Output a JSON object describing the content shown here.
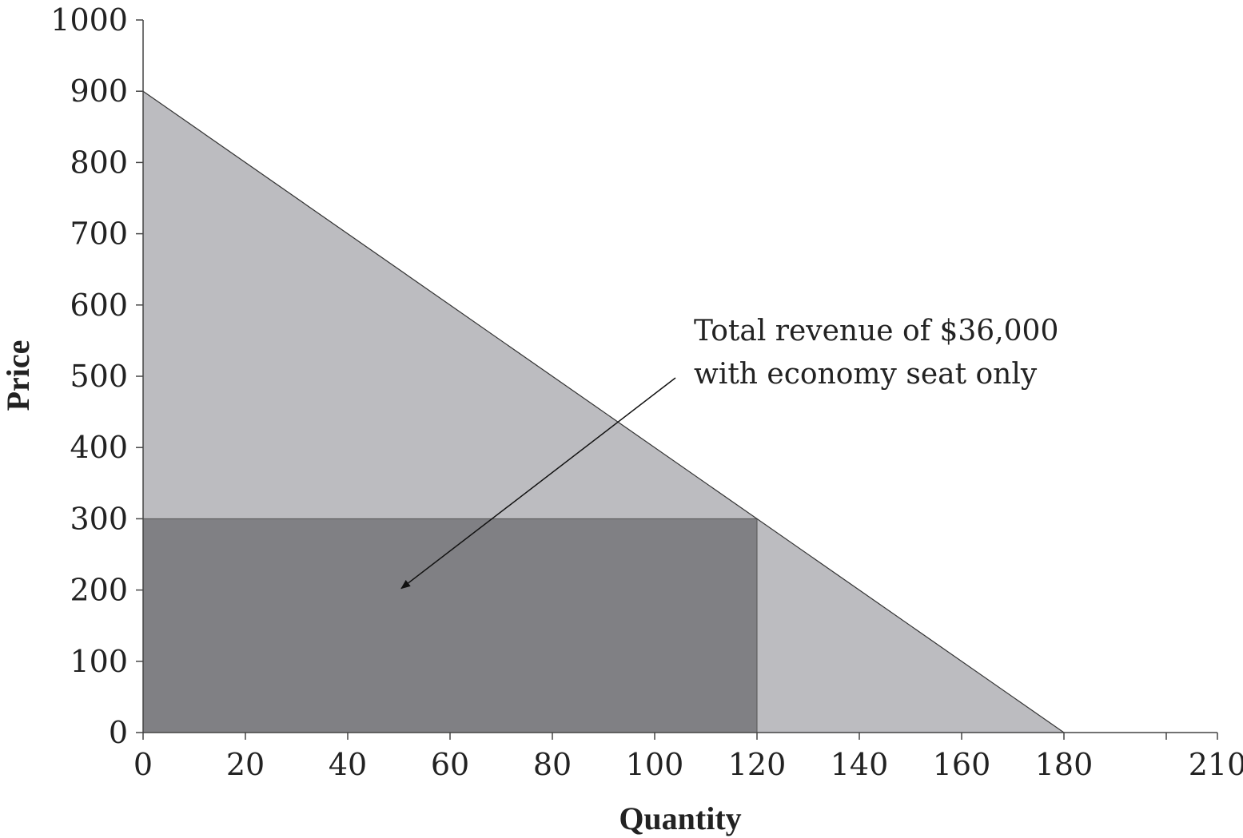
{
  "chart_data": {
    "type": "area",
    "xlabel": "Quantity",
    "ylabel": "Price",
    "xlim": [
      0,
      210
    ],
    "ylim": [
      0,
      1000
    ],
    "x_ticks": [
      0,
      20,
      40,
      60,
      80,
      100,
      120,
      140,
      160,
      180,
      210
    ],
    "x_ticks_unlabeled": [
      200
    ],
    "y_ticks": [
      0,
      100,
      200,
      300,
      400,
      500,
      600,
      700,
      800,
      900,
      1000
    ],
    "grid": false,
    "demand_curve": {
      "points": [
        [
          0,
          900
        ],
        [
          180,
          0
        ]
      ]
    },
    "revenue_rect": {
      "quantity": 120,
      "price": 300
    },
    "annotation": {
      "lines": [
        "Total revenue of $36,000",
        "with economy seat only"
      ],
      "arrow_target": [
        50,
        200
      ]
    },
    "colors": {
      "demand_area": "#bcbcc0",
      "revenue_area": "#808084",
      "axis": "#444444",
      "curve": "#333333"
    }
  }
}
